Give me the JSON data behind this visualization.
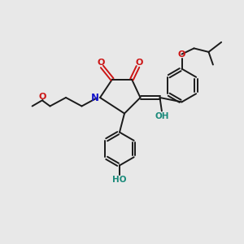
{
  "bg_color": "#e8e8e8",
  "line_color": "#1a1a1a",
  "bond_lw": 1.4,
  "N_color": "#1515cc",
  "O_color": "#cc1515",
  "OH_color": "#1a8a7a",
  "figsize": [
    3.0,
    3.0
  ],
  "dpi": 100,
  "xlim": [
    0,
    10
  ],
  "ylim": [
    0,
    10
  ]
}
